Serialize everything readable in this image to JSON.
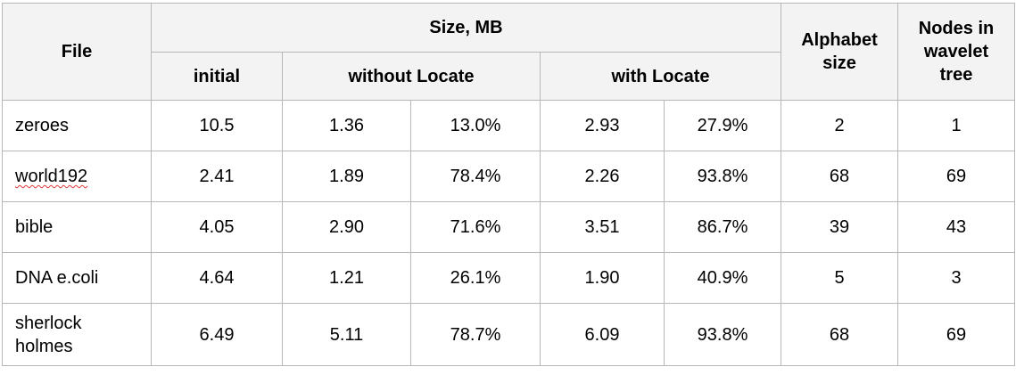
{
  "headers": {
    "file": "File",
    "size_mb": "Size, MB",
    "initial": "initial",
    "without_locate": "without Locate",
    "with_locate": "with Locate",
    "alphabet_size": "Alphabet size",
    "nodes_in_wavelet_tree": "Nodes in wavelet tree"
  },
  "rows": [
    {
      "file": "zeroes",
      "initial": "10.5",
      "without_mb": "1.36",
      "without_pct": "13.0%",
      "with_mb": "2.93",
      "with_pct": "27.9%",
      "alphabet": "2",
      "nodes": "1"
    },
    {
      "file": "world192",
      "initial": "2.41",
      "without_mb": "1.89",
      "without_pct": "78.4%",
      "with_mb": "2.26",
      "with_pct": "93.8%",
      "alphabet": "68",
      "nodes": "69"
    },
    {
      "file": "bible",
      "initial": "4.05",
      "without_mb": "2.90",
      "without_pct": "71.6%",
      "with_mb": "3.51",
      "with_pct": "86.7%",
      "alphabet": "39",
      "nodes": "43"
    },
    {
      "file": "DNA e.coli",
      "initial": "4.64",
      "without_mb": "1.21",
      "without_pct": "26.1%",
      "with_mb": "1.90",
      "with_pct": "40.9%",
      "alphabet": "5",
      "nodes": "3"
    },
    {
      "file": "sherlock holmes",
      "initial": "6.49",
      "without_mb": "5.11",
      "without_pct": "78.7%",
      "with_mb": "6.09",
      "with_pct": "93.8%",
      "alphabet": "68",
      "nodes": "69"
    }
  ],
  "spellcheck_flagged": [
    "world192"
  ],
  "colors": {
    "header_background": "#f3f3f3",
    "border": "#b7b7b7",
    "spellcheck_underline": "#e23b3b"
  }
}
